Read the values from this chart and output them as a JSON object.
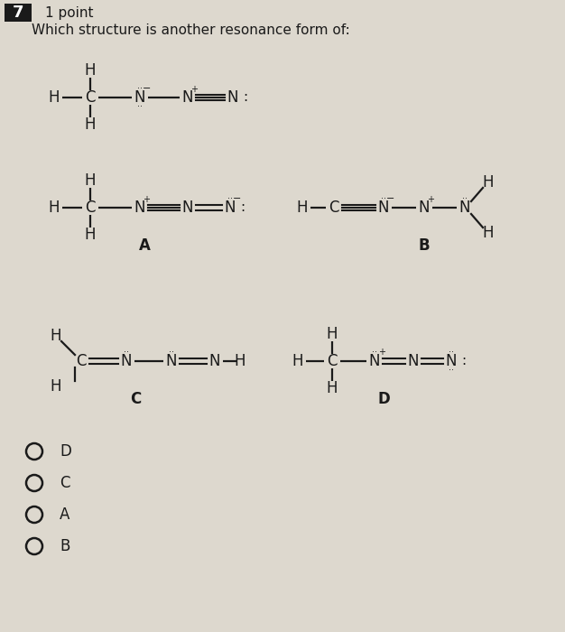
{
  "title_number": "7",
  "title_points": "1 point",
  "question": "Which structure is another resonance form of:",
  "background_color": "#ddd8ce",
  "text_color": "#1a1a1a",
  "options": [
    "D",
    "C",
    "A",
    "B"
  ]
}
